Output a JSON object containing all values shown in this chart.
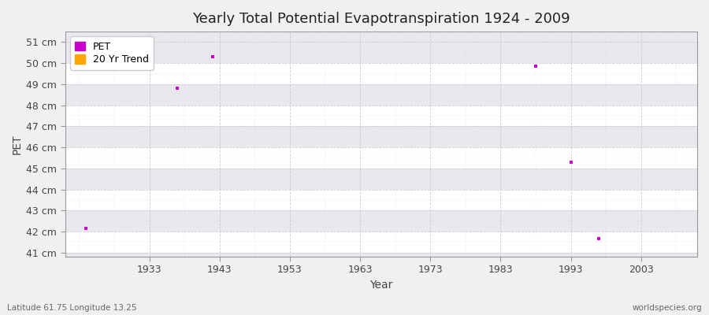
{
  "title": "Yearly Total Potential Evapotranspiration 1924 - 2009",
  "xlabel": "Year",
  "ylabel": "PET",
  "fig_bg_color": "#f0f0f0",
  "plot_bg_color": "#e8e8ee",
  "xlim": [
    1921,
    2011
  ],
  "ylim": [
    40.8,
    51.5
  ],
  "yticks": [
    41,
    42,
    43,
    44,
    45,
    46,
    47,
    48,
    49,
    50,
    51
  ],
  "ytick_labels": [
    "41 cm",
    "42 cm",
    "43 cm",
    "44 cm",
    "45 cm",
    "46 cm",
    "47 cm",
    "48 cm",
    "49 cm",
    "50 cm",
    "51 cm"
  ],
  "xticks": [
    1933,
    1943,
    1953,
    1963,
    1973,
    1983,
    1993,
    2003
  ],
  "pet_data": [
    [
      1924,
      42.15
    ],
    [
      1937,
      48.8
    ],
    [
      1942,
      50.3
    ],
    [
      1988,
      49.85
    ],
    [
      1993,
      45.3
    ],
    [
      1997,
      41.65
    ]
  ],
  "pet_color": "#cc00cc",
  "trend_color": "#FFA500",
  "marker_size": 9,
  "grid_color": "#cccccc",
  "grid_linestyle": "--",
  "title_fontsize": 13,
  "axis_label_fontsize": 10,
  "tick_fontsize": 9,
  "footer_left": "Latitude 61.75 Longitude 13.25",
  "footer_right": "worldspecies.org",
  "band_colors": [
    "#ffffff",
    "#e8e8ee"
  ],
  "spine_color": "#999999"
}
